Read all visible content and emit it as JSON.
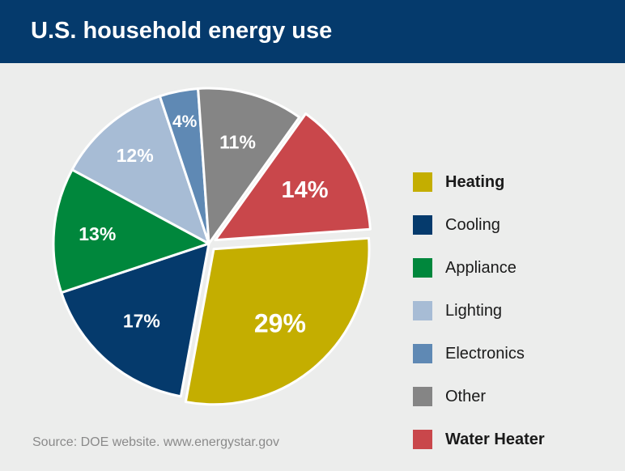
{
  "header": {
    "title": "U.S. household energy use"
  },
  "chart_data": {
    "type": "pie",
    "title": "U.S. household energy use",
    "slices": [
      {
        "label": "Heating",
        "value": 29,
        "display": "29%",
        "color": "#c4ae00",
        "bold": true,
        "exploded": true
      },
      {
        "label": "Cooling",
        "value": 17,
        "display": "17%",
        "color": "#053a6c",
        "bold": false,
        "exploded": false
      },
      {
        "label": "Appliance",
        "value": 13,
        "display": "13%",
        "color": "#00873c",
        "bold": false,
        "exploded": false
      },
      {
        "label": "Lighting",
        "value": 12,
        "display": "12%",
        "color": "#a7bcd5",
        "bold": false,
        "exploded": false
      },
      {
        "label": "Electronics",
        "value": 4,
        "display": "4%",
        "color": "#5f89b4",
        "bold": false,
        "exploded": false
      },
      {
        "label": "Other",
        "value": 11,
        "display": "11%",
        "color": "#858585",
        "bold": false,
        "exploded": false
      },
      {
        "label": "Water Heater",
        "value": 14,
        "display": "14%",
        "color": "#c9474b",
        "bold": true,
        "exploded": true
      }
    ],
    "legend_position": "right"
  },
  "source": "Source: DOE website. www.energystar.gov"
}
